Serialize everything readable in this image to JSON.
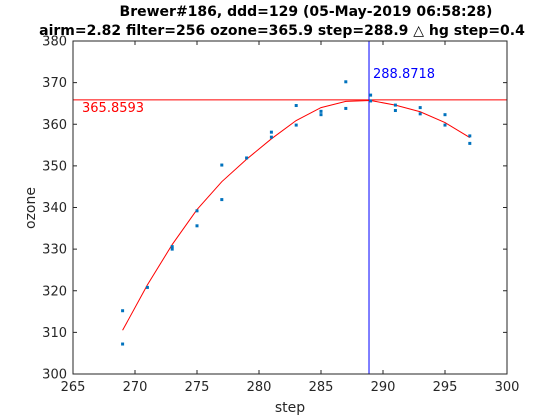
{
  "chart_data": {
    "type": "scatter",
    "title_line1": "Brewer#186, ddd=129 (05-May-2019 06:58:28)",
    "title_line2": "airm=2.82  filter=256 ozone=365.9  step=288.9 △ hg step=0.4",
    "xlabel": "step",
    "ylabel": "ozone",
    "xlim": [
      265,
      300
    ],
    "ylim": [
      300,
      380
    ],
    "xticks": [
      265,
      270,
      275,
      280,
      285,
      290,
      295,
      300
    ],
    "yticks": [
      300,
      310,
      320,
      330,
      340,
      350,
      360,
      370,
      380
    ],
    "grid": false,
    "series": [
      {
        "kind": "points",
        "color": "#0072bd",
        "x": [
          269,
          269,
          271,
          273,
          273,
          275,
          275,
          277,
          277,
          279,
          281,
          281,
          283,
          283,
          285,
          285,
          287,
          287,
          289,
          289,
          291,
          291,
          293,
          293,
          295,
          295,
          297,
          297
        ],
        "y": [
          315.2,
          307.2,
          320.8,
          330.6,
          330.0,
          339.2,
          335.6,
          350.2,
          341.9,
          351.9,
          358.1,
          356.9,
          364.5,
          359.8,
          363.1,
          362.3,
          370.2,
          363.8,
          367.0,
          365.6,
          364.6,
          363.3,
          364.0,
          362.5,
          362.3,
          359.8,
          357.2,
          355.4
        ]
      },
      {
        "kind": "fit",
        "color": "#ff0000",
        "x": [
          269,
          271,
          273,
          275,
          277,
          279,
          281,
          283,
          285,
          287,
          289,
          291,
          293,
          295,
          297
        ],
        "y": [
          310.5,
          321.4,
          331.1,
          339.5,
          346.2,
          351.6,
          356.5,
          360.9,
          364.0,
          365.5,
          365.7,
          364.6,
          363.0,
          360.4,
          356.8
        ]
      }
    ],
    "hline": {
      "y": 365.8593,
      "label": "365.8593",
      "color": "#ff0000"
    },
    "vline": {
      "x": 288.8718,
      "label": "288.8718",
      "color": "#0000ff"
    }
  }
}
